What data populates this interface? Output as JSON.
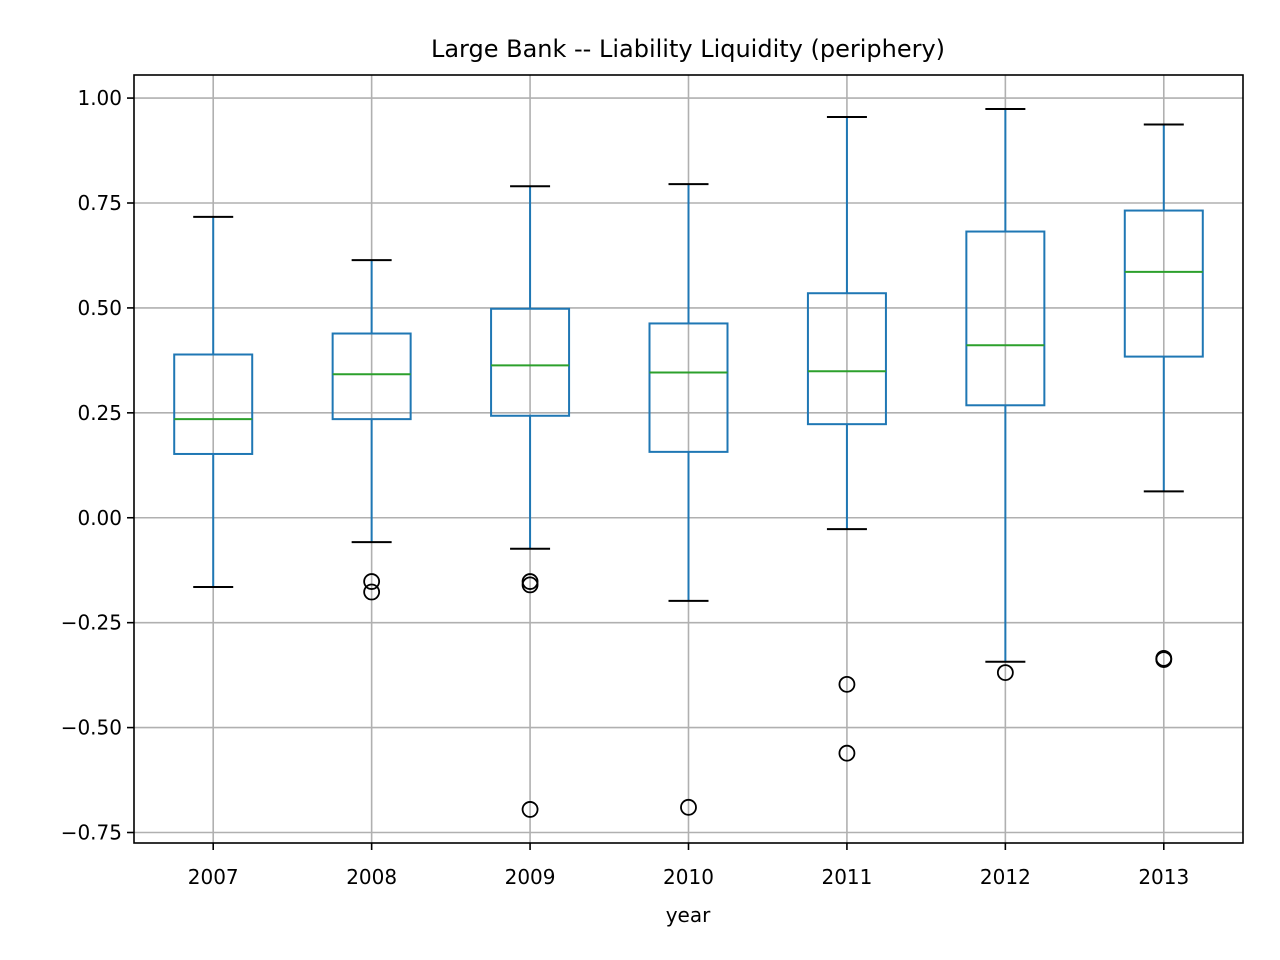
{
  "chart_data": {
    "type": "boxplot",
    "title": "Large Bank -- Liability Liquidity (periphery)",
    "xlabel": "year",
    "ylabel": "",
    "categories": [
      "2007",
      "2008",
      "2009",
      "2010",
      "2011",
      "2012",
      "2013"
    ],
    "ylim": [
      -0.775,
      1.055
    ],
    "yticks": [
      -0.75,
      -0.5,
      -0.25,
      0.0,
      0.25,
      0.5,
      0.75,
      1.0
    ],
    "ytick_labels": [
      "−0.75",
      "−0.50",
      "−0.25",
      "0.00",
      "0.25",
      "0.50",
      "0.75",
      "1.00"
    ],
    "grid": true,
    "boxes": [
      {
        "category": "2007",
        "whisker_low": -0.165,
        "q1": 0.152,
        "median": 0.235,
        "q3": 0.389,
        "whisker_high": 0.717,
        "outliers": []
      },
      {
        "category": "2008",
        "whisker_low": -0.058,
        "q1": 0.235,
        "median": 0.342,
        "q3": 0.439,
        "whisker_high": 0.614,
        "outliers": [
          -0.152,
          -0.177
        ]
      },
      {
        "category": "2009",
        "whisker_low": -0.074,
        "q1": 0.243,
        "median": 0.363,
        "q3": 0.498,
        "whisker_high": 0.79,
        "outliers": [
          -0.152,
          -0.16,
          -0.695
        ]
      },
      {
        "category": "2010",
        "whisker_low": -0.198,
        "q1": 0.157,
        "median": 0.346,
        "q3": 0.463,
        "whisker_high": 0.795,
        "outliers": [
          -0.69
        ]
      },
      {
        "category": "2011",
        "whisker_low": -0.027,
        "q1": 0.223,
        "median": 0.349,
        "q3": 0.535,
        "whisker_high": 0.955,
        "outliers": [
          -0.397,
          -0.561
        ]
      },
      {
        "category": "2012",
        "whisker_low": -0.343,
        "q1": 0.268,
        "median": 0.411,
        "q3": 0.682,
        "whisker_high": 0.974,
        "outliers": [
          -0.369
        ]
      },
      {
        "category": "2013",
        "whisker_low": 0.063,
        "q1": 0.384,
        "median": 0.586,
        "q3": 0.732,
        "whisker_high": 0.937,
        "outliers": [
          -0.335,
          -0.338
        ]
      }
    ],
    "colors": {
      "box": "#1f77b4",
      "median": "#2ca02c",
      "whisker_cap": "#000000",
      "outlier": "#000000",
      "grid": "#b0b0b0",
      "axes": "#000000"
    }
  }
}
